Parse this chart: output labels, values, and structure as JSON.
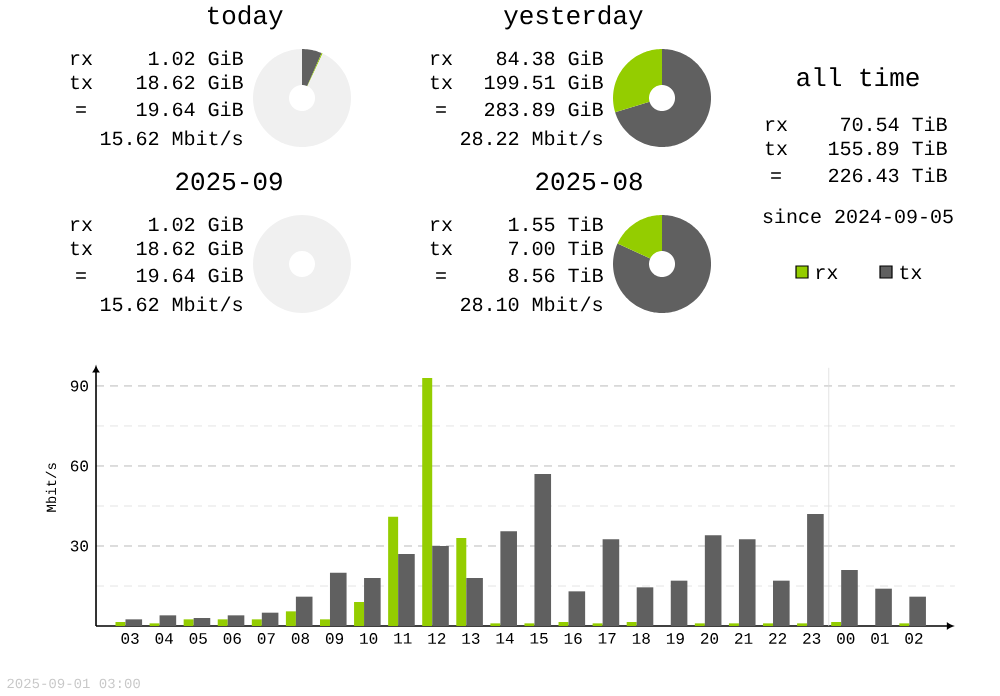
{
  "chart_data": [
    {
      "type": "donut",
      "title": "today",
      "categories": [
        null,
        null,
        null
      ],
      "values": [
        6.56,
        0.36,
        93.08
      ],
      "colors": [
        "#606060",
        "#94cd00",
        "#f0f0f0"
      ],
      "annotations": [
        "rx",
        "1.02 GiB",
        "tx",
        "18.62 GiB",
        "=",
        "19.64 GiB",
        "15.62 Mbit/s"
      ]
    },
    {
      "type": "donut",
      "title": "yesterday",
      "categories": [
        null,
        null
      ],
      "values": [
        70.28,
        29.72
      ],
      "colors": [
        "#606060",
        "#94cd00"
      ],
      "annotations": [
        "rx",
        "84.38 GiB",
        "tx",
        "199.51 GiB",
        "=",
        "283.89 GiB",
        "28.22 Mbit/s"
      ]
    },
    {
      "type": "other",
      "title": "all time",
      "annotations": [
        "rx",
        "70.54 TiB",
        "tx",
        "155.89 TiB",
        "=",
        "226.43 TiB",
        "since 2024-09-05"
      ]
    },
    {
      "type": "other",
      "title": "2025-09",
      "annotations": [
        "rx",
        "1.02 GiB",
        "tx",
        "18.62 GiB",
        "=",
        "19.64 GiB",
        "15.62 Mbit/s"
      ]
    },
    {
      "type": "donut",
      "title": "2025-08",
      "categories": [
        null,
        null
      ],
      "values": [
        81.89,
        18.11
      ],
      "colors": [
        "#606060",
        "#94cd00"
      ],
      "annotations": [
        "rx",
        "1.55 TiB",
        "tx",
        "7.00 TiB",
        "=",
        "8.56 TiB",
        "28.10 Mbit/s"
      ]
    },
    {
      "type": "bar",
      "ylabel": "Mbit/s",
      "categories": [
        "03",
        "04",
        "05",
        "06",
        "07",
        "08",
        "09",
        "10",
        "11",
        "12",
        "13",
        "14",
        "15",
        "16",
        "17",
        "18",
        "19",
        "20",
        "21",
        "22",
        "23",
        "00",
        "01",
        "02"
      ],
      "series": [
        {
          "name": "rx",
          "color": "#94cd00",
          "values": [
            1.5,
            1,
            2.5,
            2.5,
            2.5,
            5.5,
            2.5,
            9,
            41,
            93,
            33,
            1,
            1,
            1.5,
            1,
            1.5,
            0,
            1,
            1,
            1,
            1,
            1.5,
            0,
            1
          ]
        },
        {
          "name": "tx",
          "color": "#606060",
          "values": [
            2.5,
            4,
            3,
            4,
            5,
            11,
            20,
            18,
            27,
            30,
            18,
            35.5,
            57,
            13,
            32.5,
            14.5,
            17,
            34,
            32.5,
            17,
            42,
            21,
            14,
            11
          ]
        }
      ],
      "ylim": [
        0,
        98
      ],
      "yticks": [
        {
          "value": 15,
          "label": null
        },
        30,
        {
          "value": 45,
          "label": null
        },
        60,
        {
          "value": 75,
          "label": null
        },
        90
      ],
      "grid": "y",
      "legend": "top right",
      "ref_lines": [
        {
          "axis": "x",
          "value": "00",
          "color": "#dddddd"
        }
      ],
      "annotations": [
        "2025-09-01 03:00"
      ]
    }
  ]
}
